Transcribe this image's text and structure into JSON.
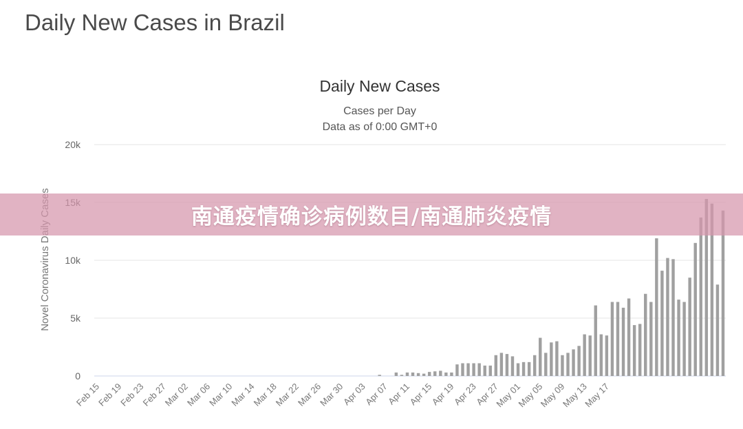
{
  "page": {
    "heading": "Daily New Cases in Brazil",
    "banner_text": "南通疫情确诊病例数目/南通肺炎疫情",
    "banner_color": "#d696ac"
  },
  "chart_data": {
    "type": "bar",
    "title": "Daily New Cases",
    "subtitle": [
      "Cases per Day",
      "Data as of 0:00 GMT+0"
    ],
    "ylabel": "Novel Coronavirus Daily Cases",
    "xlabel": "",
    "ylim": [
      0,
      20000
    ],
    "yticks": [
      0,
      5000,
      10000,
      15000,
      20000
    ],
    "ytick_labels": [
      "0",
      "5k",
      "10k",
      "15k",
      "20k"
    ],
    "xtick_labels": [
      "Feb 15",
      "Feb 19",
      "Feb 23",
      "Feb 27",
      "Mar 02",
      "Mar 06",
      "Mar 10",
      "Mar 14",
      "Mar 18",
      "Mar 22",
      "Mar 26",
      "Mar 30",
      "Apr 03",
      "Apr 07",
      "Apr 11",
      "Apr 15",
      "Apr 19",
      "Apr 23",
      "Apr 27",
      "May 01",
      "May 05",
      "May 09",
      "May 13",
      "May 17"
    ],
    "grid": true,
    "bar_color": "#a0a0a0",
    "categories_start": "Feb 15",
    "values": [
      0,
      0,
      0,
      0,
      0,
      0,
      0,
      0,
      0,
      0,
      0,
      0,
      0,
      0,
      0,
      0,
      0,
      0,
      0,
      0,
      0,
      0,
      0,
      0,
      0,
      0,
      0,
      0,
      0,
      0,
      0,
      0,
      0,
      0,
      0,
      0,
      0,
      0,
      0,
      0,
      0,
      0,
      0,
      0,
      0,
      0,
      0,
      0,
      0,
      0,
      0,
      100,
      0,
      0,
      300,
      100,
      300,
      300,
      250,
      200,
      350,
      400,
      450,
      300,
      300,
      1000,
      1100,
      1100,
      1100,
      1100,
      900,
      900,
      1800,
      2000,
      1900,
      1700,
      1100,
      1200,
      1200,
      1800,
      3300,
      2000,
      2900,
      3000,
      1800,
      2000,
      2300,
      2600,
      3600,
      3500,
      6100,
      3600,
      3500,
      6400,
      6400,
      5900,
      6700,
      4400,
      4500,
      7100,
      6400,
      11900,
      9100,
      10200,
      10100,
      6600,
      6400,
      8500,
      11500,
      13700,
      15300,
      14900,
      7900,
      14300
    ]
  }
}
